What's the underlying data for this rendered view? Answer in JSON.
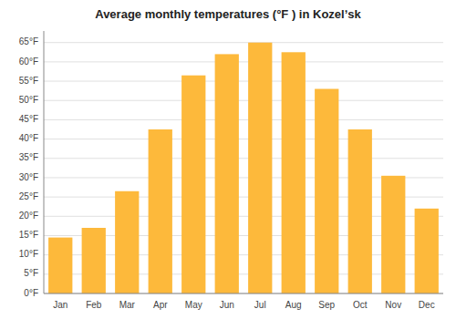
{
  "chart_data": {
    "type": "bar",
    "title": "Average monthly temperatures (°F ) in Kozelʼsk",
    "categories": [
      "Jan",
      "Feb",
      "Mar",
      "Apr",
      "May",
      "Jun",
      "Jul",
      "Aug",
      "Sep",
      "Oct",
      "Nov",
      "Dec"
    ],
    "values": [
      14.5,
      17.0,
      26.5,
      42.5,
      56.5,
      62.0,
      65.0,
      62.5,
      53.0,
      42.5,
      30.5,
      22.0
    ],
    "color": "#FDB93B",
    "ylim": [
      0,
      68
    ],
    "yticks": [
      {
        "value": 0,
        "label": "0°F"
      },
      {
        "value": 5,
        "label": "5°F"
      },
      {
        "value": 10,
        "label": "10°F"
      },
      {
        "value": 15,
        "label": "15°F"
      },
      {
        "value": 20,
        "label": "20°F"
      },
      {
        "value": 25,
        "label": "25°F"
      },
      {
        "value": 30,
        "label": "30°F"
      },
      {
        "value": 35,
        "label": "35°F"
      },
      {
        "value": 40,
        "label": "40°F"
      },
      {
        "value": 45,
        "label": "45°F"
      },
      {
        "value": 50,
        "label": "50°F"
      },
      {
        "value": 55,
        "label": "55°F"
      },
      {
        "value": 60,
        "label": "60°F"
      },
      {
        "value": 65,
        "label": "65°F"
      }
    ],
    "grid": true
  }
}
